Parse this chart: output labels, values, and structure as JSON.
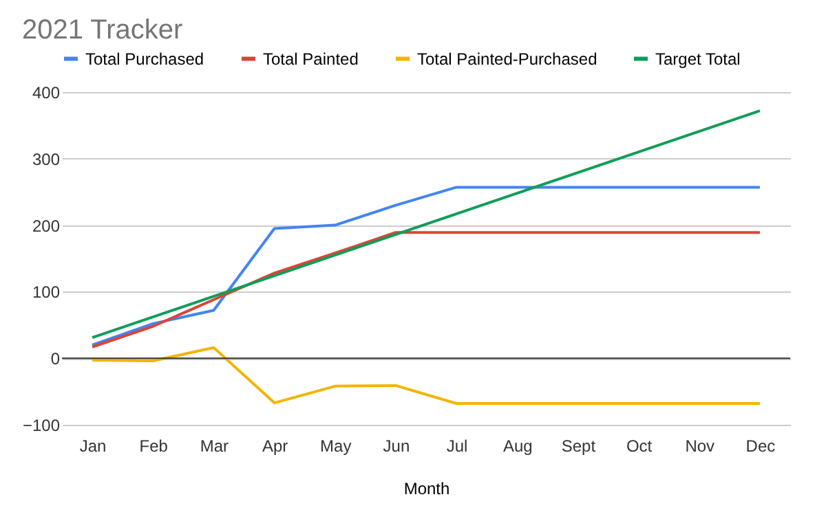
{
  "chart_data": {
    "type": "line",
    "title": "2021 Tracker",
    "xlabel": "Month",
    "categories": [
      "Jan",
      "Feb",
      "Mar",
      "Apr",
      "May",
      "Jun",
      "Jul",
      "Aug",
      "Sept",
      "Oct",
      "Nov",
      "Dec"
    ],
    "series": [
      {
        "name": "Total Purchased",
        "color": "#4285f4",
        "values": [
          20,
          52,
          72,
          195,
          200,
          230,
          257,
          257,
          257,
          257,
          257,
          257
        ]
      },
      {
        "name": "Total Painted",
        "color": "#db4437",
        "values": [
          17,
          48,
          88,
          128,
          158,
          189,
          189,
          189,
          189,
          189,
          189,
          189
        ]
      },
      {
        "name": "Total Painted-Purchased",
        "color": "#f4b400",
        "values": [
          -3,
          -4,
          16,
          -67,
          -42,
          -41,
          -68,
          -68,
          -68,
          -68,
          -68,
          -68
        ]
      },
      {
        "name": "Target Total",
        "color": "#0f9d58",
        "values": [
          31,
          62,
          93,
          124,
          155,
          186,
          217,
          248,
          279,
          310,
          341,
          372
        ]
      }
    ],
    "ylim": [
      -100,
      400
    ],
    "yticks": [
      -100,
      0,
      100,
      200,
      300,
      400
    ],
    "grid": "y",
    "legend": "top",
    "ref_lines": [
      {
        "axis": "y",
        "value": 0,
        "color": "#333333"
      }
    ]
  }
}
